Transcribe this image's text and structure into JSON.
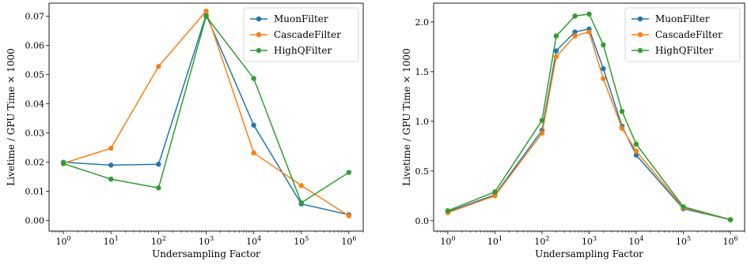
{
  "chart_data": [
    {
      "type": "line",
      "xscale": "log",
      "xlabel": "Undersampling Factor",
      "ylabel": "Livetime / GPU Time × 1000",
      "xlim": [
        0.5,
        2000000
      ],
      "ylim": [
        -0.0036,
        0.0745
      ],
      "xticks": [
        1,
        10,
        100,
        1000,
        10000,
        100000,
        1000000
      ],
      "xtick_labels": [
        {
          "base": "10",
          "exp": "0"
        },
        {
          "base": "10",
          "exp": "1"
        },
        {
          "base": "10",
          "exp": "2"
        },
        {
          "base": "10",
          "exp": "3"
        },
        {
          "base": "10",
          "exp": "4"
        },
        {
          "base": "10",
          "exp": "5"
        },
        {
          "base": "10",
          "exp": "6"
        }
      ],
      "yticks": [
        0.0,
        0.01,
        0.02,
        0.03,
        0.04,
        0.05,
        0.06,
        0.07
      ],
      "ytick_labels": [
        "0.00",
        "0.01",
        "0.02",
        "0.03",
        "0.04",
        "0.05",
        "0.06",
        "0.07"
      ],
      "grid": false,
      "legend_position": "top-right",
      "series": [
        {
          "name": "MuonFilter",
          "color": "#1f77b4",
          "x": [
            1,
            10,
            100,
            1000,
            10000,
            100000,
            1000000
          ],
          "y": [
            0.02,
            0.019,
            0.0193,
            0.0705,
            0.0327,
            0.0057,
            0.002
          ]
        },
        {
          "name": "CascadeFilter",
          "color": "#ff7f0e",
          "x": [
            1,
            10,
            100,
            1000,
            10000,
            100000,
            1000000
          ],
          "y": [
            0.0196,
            0.0248,
            0.0528,
            0.0718,
            0.0232,
            0.012,
            0.0016
          ]
        },
        {
          "name": "HighQFilter",
          "color": "#2ca02c",
          "x": [
            1,
            10,
            100,
            1000,
            10000,
            100000,
            1000000
          ],
          "y": [
            0.0195,
            0.0142,
            0.0112,
            0.07,
            0.0487,
            0.0061,
            0.0165
          ]
        }
      ]
    },
    {
      "type": "line",
      "xscale": "log",
      "xlabel": "Undersampling Factor",
      "ylabel": "Livetime / GPU Time × 1000",
      "xlim": [
        0.5,
        2000000
      ],
      "ylim": [
        -0.105,
        2.19
      ],
      "xticks": [
        1,
        10,
        100,
        1000,
        10000,
        100000,
        1000000
      ],
      "xtick_labels": [
        {
          "base": "10",
          "exp": "0"
        },
        {
          "base": "10",
          "exp": "1"
        },
        {
          "base": "10",
          "exp": "2"
        },
        {
          "base": "10",
          "exp": "3"
        },
        {
          "base": "10",
          "exp": "4"
        },
        {
          "base": "10",
          "exp": "5"
        },
        {
          "base": "10",
          "exp": "6"
        }
      ],
      "yticks": [
        0.0,
        0.5,
        1.0,
        1.5,
        2.0
      ],
      "ytick_labels": [
        "0.0",
        "0.5",
        "1.0",
        "1.5",
        "2.0"
      ],
      "grid": false,
      "legend_position": "top-right",
      "series": [
        {
          "name": "MuonFilter",
          "color": "#1f77b4",
          "x": [
            1,
            10,
            100,
            200,
            500,
            1000,
            2000,
            5000,
            10000,
            100000,
            1000000
          ],
          "y": [
            0.09,
            0.26,
            0.91,
            1.71,
            1.9,
            1.93,
            1.53,
            0.95,
            0.66,
            0.12,
            0.01
          ]
        },
        {
          "name": "CascadeFilter",
          "color": "#ff7f0e",
          "x": [
            1,
            10,
            100,
            200,
            500,
            1000,
            2000,
            5000,
            10000,
            100000,
            1000000
          ],
          "y": [
            0.08,
            0.25,
            0.88,
            1.65,
            1.86,
            1.9,
            1.43,
            0.93,
            0.7,
            0.13,
            0.01
          ]
        },
        {
          "name": "HighQFilter",
          "color": "#2ca02c",
          "x": [
            1,
            10,
            100,
            200,
            500,
            1000,
            2000,
            5000,
            10000,
            100000,
            1000000
          ],
          "y": [
            0.1,
            0.29,
            1.01,
            1.86,
            2.06,
            2.08,
            1.77,
            1.1,
            0.77,
            0.14,
            0.01
          ]
        }
      ]
    }
  ]
}
